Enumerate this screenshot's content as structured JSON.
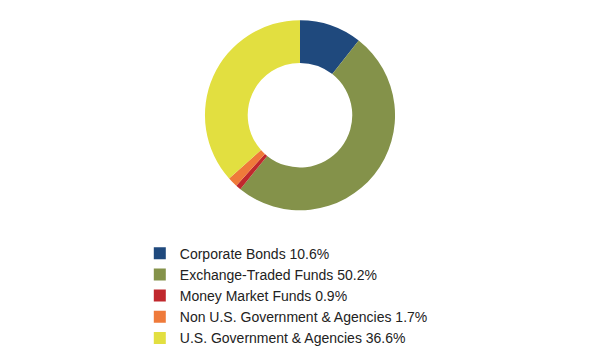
{
  "chart_data": {
    "type": "pie",
    "categories": [
      "Corporate Bonds 10.6%",
      "Exchange-Traded Funds 50.2%",
      "Money Market Funds 0.9%",
      "Non U.S. Government & Agencies 1.7%",
      "U.S. Government & Agencies 36.6%"
    ],
    "values": [
      10.6,
      50.2,
      0.9,
      1.7,
      36.6
    ],
    "colors": [
      "#1f497d",
      "#84924a",
      "#c0282d",
      "#ef7a3a",
      "#e2df40"
    ],
    "legend": "bottom"
  }
}
